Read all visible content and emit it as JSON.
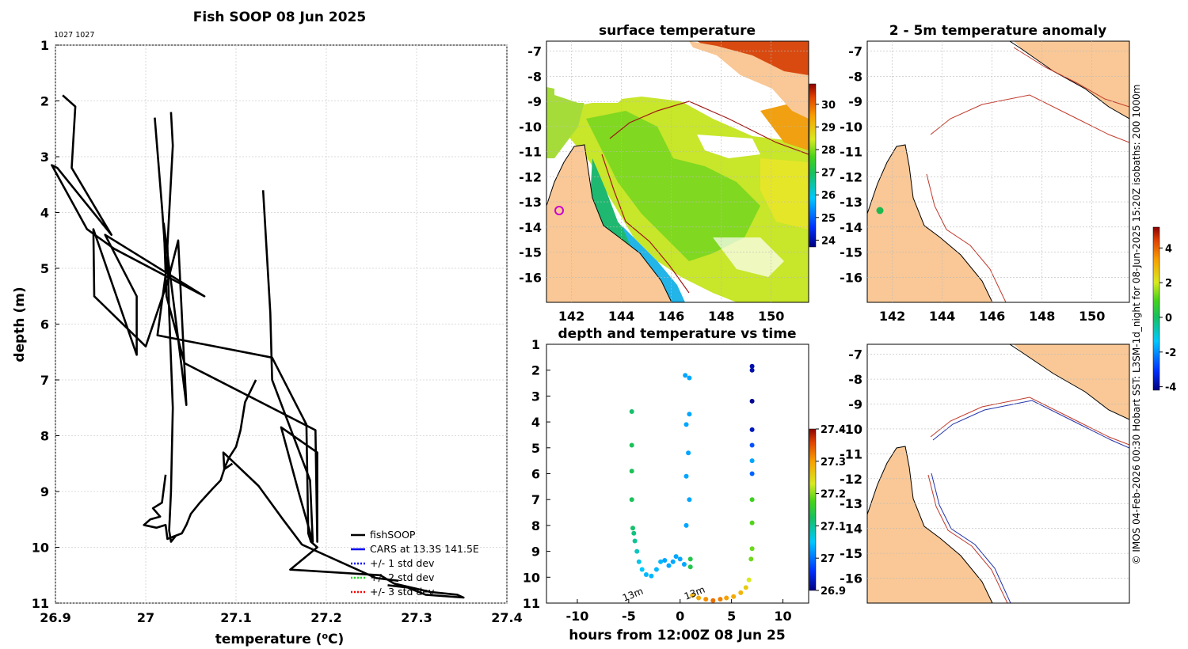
{
  "figure": {
    "copyright_text": "© IMOS 04-Feb-2026 00:30 Hobart SST: L3SM-1d_night for 08-Jun-2025 15:20Z isobaths: 200  1000m"
  },
  "colors": {
    "land": "#f9c896",
    "profile_line": "#000000",
    "isobath_red": "#c0392b",
    "isobath_blue": "#2233aa",
    "grid": "#d0d0d0"
  },
  "chart_data": [
    {
      "id": "profile",
      "type": "line",
      "title": "Fish SOOP 08 Jun 2025",
      "top_left_note": "1027 1027",
      "xlabel": "temperature (",
      "xlabel_sup": "o",
      "xlabel_end": "C)",
      "ylabel": "depth (m)",
      "xlim": [
        26.9,
        27.4
      ],
      "ylim": [
        1,
        11
      ],
      "y_reversed": true,
      "x_ticks": [
        "26.9",
        "27",
        "27.1",
        "27.2",
        "27.3",
        "27.4"
      ],
      "y_ticks": [
        "1",
        "2",
        "3",
        "4",
        "5",
        "6",
        "7",
        "8",
        "9",
        "10",
        "11"
      ],
      "grid": true,
      "legend": [
        "fishSOOP",
        "CARS at 13.3S 141.5E",
        "+/- 1 std dev",
        "+/- 2 std dev",
        "+/- 3 std dev"
      ],
      "legend_position": "bottom-right",
      "series": [
        {
          "name": "fishSOOP",
          "points": [
            [
              26.908,
              1.9
            ],
            [
              26.922,
              2.1
            ],
            [
              26.918,
              3.2
            ],
            [
              26.962,
              4.4
            ],
            [
              26.902,
              3.2
            ],
            [
              26.896,
              3.15
            ],
            [
              26.935,
              4.3
            ],
            [
              26.965,
              4.65
            ],
            [
              27.065,
              5.5
            ],
            [
              26.955,
              4.4
            ],
            [
              26.99,
              5.5
            ],
            [
              26.99,
              6.55
            ],
            [
              26.942,
              4.3
            ],
            [
              26.943,
              5.5
            ],
            [
              27.0,
              6.4
            ],
            [
              27.025,
              5.2
            ],
            [
              27.036,
              4.5
            ],
            [
              27.042,
              6.5
            ],
            [
              27.045,
              7.45
            ],
            [
              27.02,
              4.2
            ],
            [
              27.023,
              5.5
            ],
            [
              27.043,
              6.7
            ],
            [
              27.188,
              7.9
            ],
            [
              27.19,
              9.9
            ],
            [
              27.19,
              8.3
            ],
            [
              27.15,
              7.85
            ],
            [
              27.17,
              9.05
            ],
            [
              27.185,
              9.9
            ],
            [
              27.182,
              8.8
            ],
            [
              27.14,
              7.0
            ],
            [
              27.138,
              5.8
            ],
            [
              27.13,
              3.6
            ]
          ]
        },
        {
          "name": "fishSOOP",
          "points": [
            [
              27.028,
              2.2
            ],
            [
              27.03,
              2.8
            ],
            [
              27.024,
              4.6
            ],
            [
              27.026,
              5.8
            ],
            [
              27.03,
              7.5
            ],
            [
              27.028,
              9.0
            ],
            [
              27.026,
              9.7
            ],
            [
              27.028,
              9.9
            ],
            [
              27.033,
              9.8
            ]
          ]
        },
        {
          "name": "fishSOOP",
          "points": [
            [
              27.01,
              2.3
            ],
            [
              27.018,
              3.9
            ],
            [
              27.023,
              5.0
            ],
            [
              27.013,
              6.2
            ],
            [
              27.14,
              6.6
            ],
            [
              27.178,
              7.8
            ],
            [
              27.18,
              9.75
            ],
            [
              27.183,
              9.9
            ],
            [
              27.19,
              10.0
            ],
            [
              27.16,
              10.4
            ],
            [
              27.26,
              10.5
            ],
            [
              27.275,
              10.65
            ],
            [
              27.315,
              10.8
            ],
            [
              27.345,
              10.85
            ],
            [
              27.352,
              10.9
            ],
            [
              27.31,
              10.85
            ],
            [
              27.29,
              10.72
            ],
            [
              27.268,
              10.68
            ]
          ]
        },
        {
          "name": "fishSOOP",
          "points": [
            [
              27.022,
              8.7
            ],
            [
              27.018,
              9.2
            ],
            [
              27.008,
              9.3
            ],
            [
              27.016,
              9.45
            ],
            [
              27.005,
              9.5
            ],
            [
              26.998,
              9.6
            ],
            [
              27.012,
              9.65
            ],
            [
              27.022,
              9.6
            ],
            [
              27.024,
              9.85
            ],
            [
              27.032,
              9.8
            ],
            [
              27.04,
              9.75
            ],
            [
              27.045,
              9.6
            ],
            [
              27.05,
              9.4
            ],
            [
              27.06,
              9.2
            ],
            [
              27.074,
              8.95
            ],
            [
              27.083,
              8.8
            ],
            [
              27.088,
              8.55
            ],
            [
              27.092,
              8.4
            ],
            [
              27.1,
              8.2
            ],
            [
              27.105,
              7.9
            ],
            [
              27.11,
              7.4
            ],
            [
              27.122,
              7.0
            ]
          ]
        },
        {
          "name": "fishSOOP",
          "points": [
            [
              27.096,
              8.5
            ],
            [
              27.087,
              8.6
            ],
            [
              27.086,
              8.3
            ],
            [
              27.125,
              8.9
            ],
            [
              27.152,
              9.5
            ],
            [
              27.173,
              9.95
            ],
            [
              27.255,
              10.55
            ],
            [
              27.28,
              10.6
            ]
          ]
        }
      ]
    },
    {
      "id": "timeseries",
      "type": "scatter",
      "title": "depth and temperature vs time",
      "xlabel": "hours from 12:00Z 08 Jun 25",
      "xlim": [
        -13,
        12.5
      ],
      "ylim": [
        1,
        11
      ],
      "y_reversed": true,
      "x_ticks": [
        "-10",
        "-5",
        "0",
        "5",
        "10"
      ],
      "y_ticks": [
        "1",
        "2",
        "3",
        "4",
        "5",
        "6",
        "7",
        "8",
        "9",
        "10",
        "11"
      ],
      "annotations": [
        "13m",
        "13m"
      ],
      "colorbar": {
        "range": [
          26.9,
          27.4
        ],
        "ticks": [
          "26.9",
          "27",
          "27.1",
          "27.2",
          "27.3",
          "27.4"
        ]
      },
      "points": [
        [
          -4.7,
          3.6,
          27.12
        ],
        [
          -4.7,
          4.9,
          27.13
        ],
        [
          -4.7,
          5.9,
          27.13
        ],
        [
          -4.7,
          7.0,
          27.13
        ],
        [
          -4.6,
          8.1,
          27.12
        ],
        [
          -4.5,
          8.3,
          27.11
        ],
        [
          -4.4,
          8.6,
          27.1
        ],
        [
          -4.2,
          9.0,
          27.08
        ],
        [
          -4.0,
          9.4,
          27.06
        ],
        [
          -3.7,
          9.7,
          27.05
        ],
        [
          -3.3,
          9.9,
          27.04
        ],
        [
          -2.8,
          9.95,
          27.04
        ],
        [
          -2.3,
          9.7,
          27.04
        ],
        [
          -1.9,
          9.4,
          27.04
        ],
        [
          -1.5,
          9.35,
          27.03
        ],
        [
          -1.1,
          9.55,
          27.03
        ],
        [
          -0.7,
          9.4,
          27.03
        ],
        [
          -0.4,
          9.2,
          27.03
        ],
        [
          0.0,
          9.3,
          27.03
        ],
        [
          0.4,
          9.5,
          27.03
        ],
        [
          0.5,
          2.2,
          27.03
        ],
        [
          0.9,
          2.3,
          27.03
        ],
        [
          0.9,
          3.7,
          27.03
        ],
        [
          0.6,
          4.1,
          27.03
        ],
        [
          0.8,
          5.2,
          27.03
        ],
        [
          0.6,
          6.1,
          27.03
        ],
        [
          0.9,
          7.0,
          27.03
        ],
        [
          0.6,
          8.0,
          27.03
        ],
        [
          1.0,
          9.3,
          27.14
        ],
        [
          1.0,
          9.6,
          27.14
        ],
        [
          1.2,
          10.7,
          27.28
        ],
        [
          1.8,
          10.8,
          27.29
        ],
        [
          2.5,
          10.85,
          27.31
        ],
        [
          3.2,
          10.9,
          27.33
        ],
        [
          3.9,
          10.85,
          27.32
        ],
        [
          4.5,
          10.8,
          27.3
        ],
        [
          5.2,
          10.75,
          27.29
        ],
        [
          5.9,
          10.6,
          27.28
        ],
        [
          6.4,
          10.4,
          27.26
        ],
        [
          6.7,
          10.1,
          27.23
        ],
        [
          6.9,
          9.3,
          27.19
        ],
        [
          7.0,
          8.9,
          27.19
        ],
        [
          7.0,
          7.9,
          27.18
        ],
        [
          7.0,
          7.0,
          27.17
        ],
        [
          7.0,
          6.0,
          26.99
        ],
        [
          7.0,
          5.5,
          27.03
        ],
        [
          7.0,
          4.9,
          26.98
        ],
        [
          7.0,
          4.3,
          26.93
        ],
        [
          7.0,
          3.2,
          26.91
        ],
        [
          7.0,
          2.0,
          26.92
        ],
        [
          7.0,
          1.85,
          26.92
        ]
      ]
    },
    {
      "id": "sst_map",
      "type": "heatmap",
      "title": "surface temperature",
      "x_ticks": [
        "142",
        "144",
        "146",
        "148",
        "150"
      ],
      "y_ticks": [
        "-7",
        "-8",
        "-9",
        "-10",
        "-11",
        "-12",
        "-13",
        "-14",
        "-15",
        "-16"
      ],
      "lon_range": [
        141,
        151.5
      ],
      "lat_range": [
        -17,
        -6.6
      ],
      "colorbar": {
        "range": [
          23.7,
          30.9
        ],
        "ticks": [
          "24",
          "25",
          "26",
          "27",
          "28",
          "29",
          "30"
        ]
      }
    },
    {
      "id": "anomaly_map",
      "type": "heatmap",
      "title": "2 - 5m temperature anomaly",
      "x_ticks": [
        "142",
        "144",
        "146",
        "148",
        "150"
      ],
      "y_ticks": [
        "-7",
        "-8",
        "-9",
        "-10",
        "-11",
        "-12",
        "-13",
        "-14",
        "-15",
        "-16"
      ],
      "lon_range": [
        141,
        151.5
      ],
      "lat_range": [
        -17,
        -6.6
      ],
      "colorbar": {
        "range": [
          -4.2,
          5.2
        ],
        "ticks": [
          "-4",
          "-2",
          "0",
          "2",
          "4"
        ]
      }
    },
    {
      "id": "isobath_map",
      "type": "heatmap",
      "title": "",
      "y_ticks": [
        "-7",
        "-8",
        "-9",
        "-10",
        "-11",
        "-12",
        "-13",
        "-14",
        "-15",
        "-16"
      ],
      "lon_range": [
        141,
        151.5
      ],
      "lat_range": [
        -17,
        -6.6
      ]
    }
  ]
}
